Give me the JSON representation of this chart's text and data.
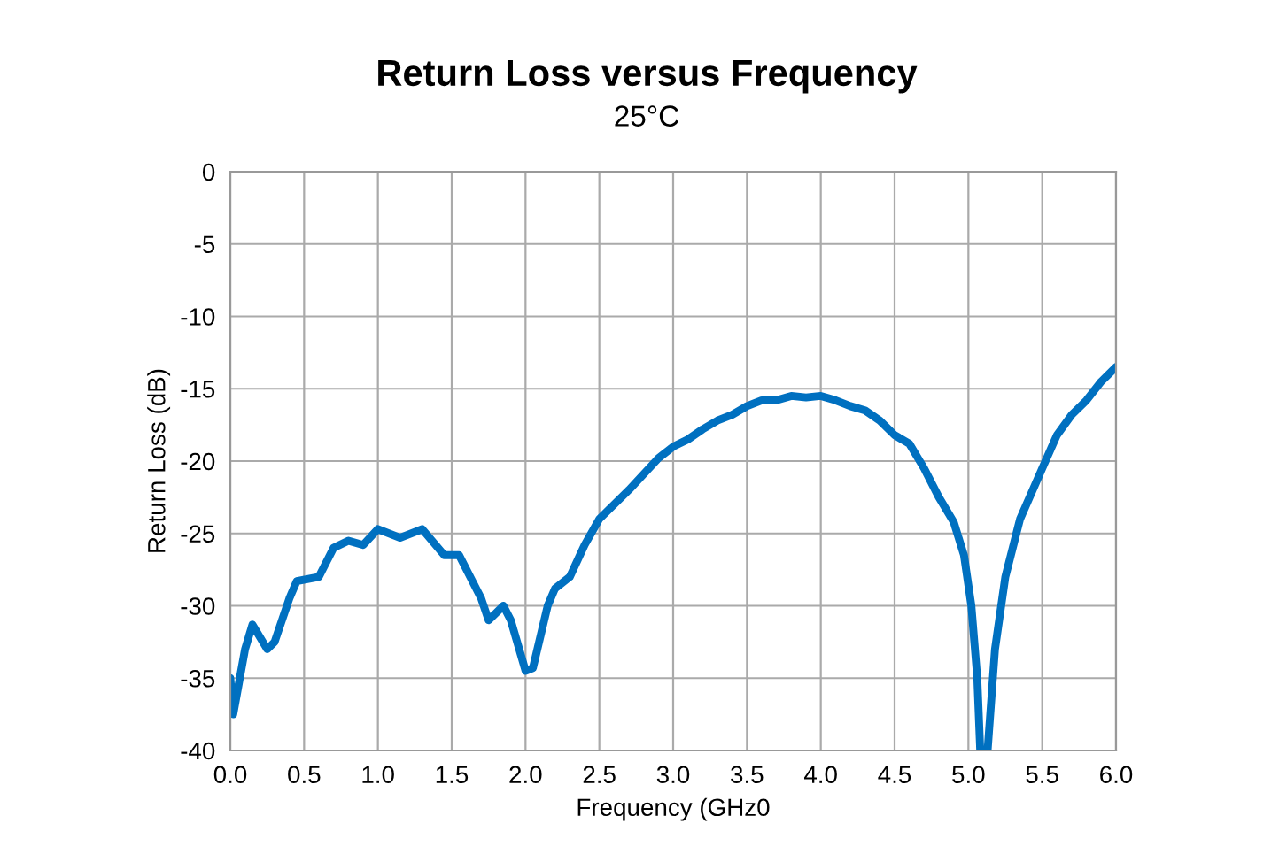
{
  "chart_data": {
    "type": "line",
    "title": "Return Loss versus Frequency",
    "subtitle": "25°C",
    "xlabel": "Frequency (GHz0",
    "ylabel": "Return Loss (dB)",
    "xlim": [
      0,
      6
    ],
    "xticks": [
      {
        "value": 0,
        "label": "0.0"
      },
      {
        "value": 0.5,
        "label": "0.5"
      },
      {
        "value": 1,
        "label": "1.0"
      },
      {
        "value": 1.5,
        "label": "1.5"
      },
      {
        "value": 2,
        "label": "2.0"
      },
      {
        "value": 2.5,
        "label": "2.5"
      },
      {
        "value": 3,
        "label": "3.0"
      },
      {
        "value": 3.5,
        "label": "3.5"
      },
      {
        "value": 4,
        "label": "4.0"
      },
      {
        "value": 4.5,
        "label": "4.5"
      },
      {
        "value": 5,
        "label": "5.0"
      },
      {
        "value": 5.5,
        "label": "5.5"
      },
      {
        "value": 6,
        "label": "6.0"
      }
    ],
    "ylim": [
      -40,
      0
    ],
    "yticks": [
      -40,
      -35,
      -30,
      -25,
      -20,
      -15,
      -10,
      -5,
      0
    ],
    "grid": true,
    "legend": false,
    "marker": "none",
    "line_style": "solid",
    "series": [
      {
        "color": "#0070c0",
        "x": [
          0.0,
          0.02,
          0.1,
          0.15,
          0.25,
          0.3,
          0.4,
          0.45,
          0.6,
          0.7,
          0.8,
          0.9,
          1.0,
          1.15,
          1.3,
          1.45,
          1.55,
          1.7,
          1.75,
          1.85,
          1.9,
          2.0,
          2.05,
          2.15,
          2.2,
          2.3,
          2.4,
          2.5,
          2.7,
          2.9,
          3.0,
          3.1,
          3.2,
          3.3,
          3.4,
          3.5,
          3.6,
          3.7,
          3.8,
          3.9,
          4.0,
          4.1,
          4.2,
          4.3,
          4.4,
          4.5,
          4.6,
          4.7,
          4.8,
          4.9,
          4.97,
          5.02,
          5.06,
          5.08,
          5.13,
          5.18,
          5.25,
          5.35,
          5.5,
          5.6,
          5.7,
          5.8,
          5.9,
          6.0
        ],
        "values": [
          -35,
          -37.5,
          -33,
          -31.3,
          -33,
          -32.5,
          -29.5,
          -28.3,
          -28,
          -26,
          -25.5,
          -25.8,
          -24.7,
          -25.3,
          -24.7,
          -26.5,
          -26.5,
          -29.5,
          -31,
          -30,
          -31,
          -34.5,
          -34.3,
          -30,
          -28.8,
          -28,
          -25.8,
          -24,
          -22,
          -19.8,
          -19,
          -18.5,
          -17.8,
          -17.2,
          -16.8,
          -16.2,
          -15.8,
          -15.8,
          -15.5,
          -15.6,
          -15.5,
          -15.8,
          -16.2,
          -16.5,
          -17.2,
          -18.2,
          -18.8,
          -20.5,
          -22.5,
          -24.2,
          -26.5,
          -30,
          -35,
          -40,
          -40,
          -33,
          -28,
          -24,
          -20.5,
          -18.2,
          -16.8,
          -15.8,
          -14.5,
          -13.5
        ]
      }
    ]
  }
}
